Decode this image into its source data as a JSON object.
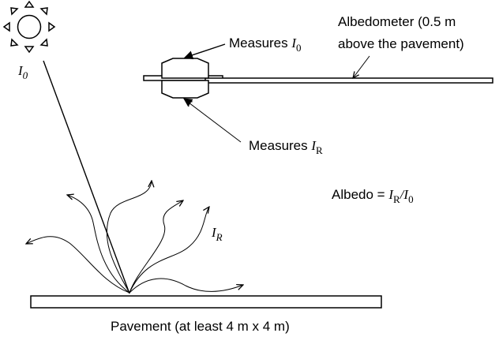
{
  "labels": {
    "albedometer_line1": "Albedometer (0.5 m",
    "albedometer_line2": "above the pavement)",
    "measures_prefix": "Measures ",
    "pavement": "Pavement (at least 4 m x 4 m)",
    "albedo_prefix": "Albedo = "
  },
  "math": {
    "i_symbol": "I",
    "r_symbol": "I",
    "sub_0": "0",
    "sub_r": "R",
    "slash": "/"
  },
  "icons": {
    "sun": "sun-icon",
    "instrument": "albedometer-sensor-icon"
  },
  "colors": {
    "stroke": "#000000",
    "background": "#ffffff"
  }
}
